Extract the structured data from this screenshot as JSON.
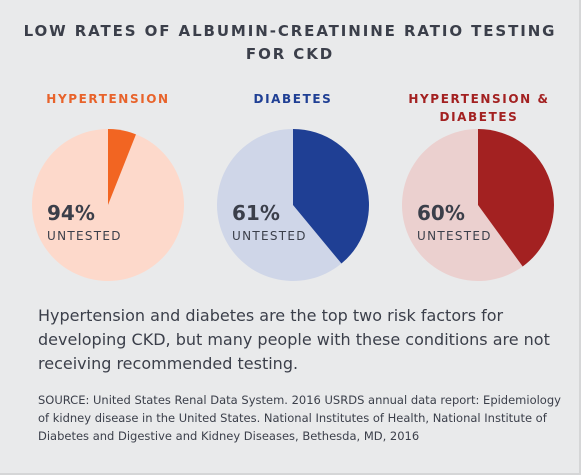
{
  "title": "LOW RATES OF ALBUMIN-CREATININE RATIO TESTING FOR CKD",
  "chart_data": [
    {
      "type": "pie",
      "title": "HYPERTENSION",
      "slices": [
        {
          "label": "UNTESTED",
          "value": 94,
          "color": "#fdd9cb"
        },
        {
          "label": "",
          "value": 6,
          "color": "#f26522"
        }
      ],
      "percent_label": "94%",
      "sub_label": "UNTESTED",
      "title_color": "#e8632b"
    },
    {
      "type": "pie",
      "title": "DIABETES",
      "slices": [
        {
          "label": "UNTESTED",
          "value": 61,
          "color": "#cfd6e8"
        },
        {
          "label": "",
          "value": 39,
          "color": "#1f3f94"
        }
      ],
      "percent_label": "61%",
      "sub_label": "UNTESTED",
      "title_color": "#1f3f94"
    },
    {
      "type": "pie",
      "title": "HYPERTENSION & DIABETES",
      "slices": [
        {
          "label": "UNTESTED",
          "value": 60,
          "color": "#ebd0cf"
        },
        {
          "label": "",
          "value": 40,
          "color": "#a32121"
        }
      ],
      "percent_label": "60%",
      "sub_label": "UNTESTED",
      "title_color": "#a32121"
    }
  ],
  "description": "Hypertension and diabetes are the top two risk factors for developing CKD, but many people with these conditions are not receiving recommended testing.",
  "source": "SOURCE: United States Renal Data System. 2016 USRDS annual data report: Epidemiology of kidney disease in the United States. National Institutes of Health, National Institute of Diabetes and Digestive and Kidney Diseases, Bethesda, MD, 2016"
}
